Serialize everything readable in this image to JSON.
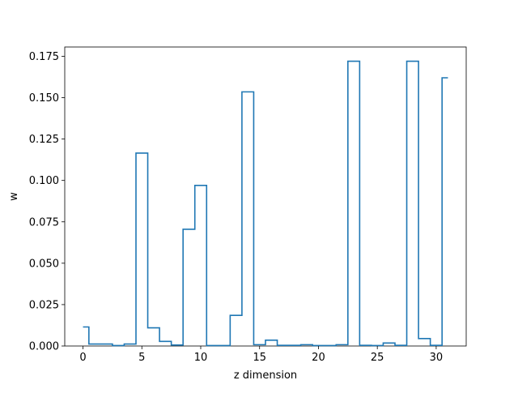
{
  "chart_data": {
    "type": "line",
    "style": "step-mid",
    "title": "",
    "xlabel": "z dimension",
    "ylabel": "w",
    "x": [
      0,
      1,
      2,
      3,
      4,
      5,
      6,
      7,
      8,
      9,
      10,
      11,
      12,
      13,
      14,
      15,
      16,
      17,
      18,
      19,
      20,
      21,
      22,
      23,
      24,
      25,
      26,
      27,
      28,
      29,
      30,
      31
    ],
    "series": [
      {
        "color": "#1f77b4",
        "values": [
          0.0115,
          0.0012,
          0.0012,
          0.0003,
          0.0012,
          0.1165,
          0.011,
          0.0028,
          0.0006,
          0.0705,
          0.097,
          0.0003,
          0.0003,
          0.0185,
          0.1535,
          0.0008,
          0.0035,
          0.0004,
          0.0004,
          0.0008,
          0.0003,
          0.0003,
          0.0008,
          0.172,
          0.0004,
          0.0003,
          0.0018,
          0.0004,
          0.172,
          0.0045,
          0.0004,
          0.162
        ]
      }
    ],
    "xlim": [
      -1.55,
      32.55
    ],
    "ylim": [
      0,
      0.1806
    ],
    "xticks": [
      0,
      5,
      10,
      15,
      20,
      25,
      30
    ],
    "xtick_labels": [
      "0",
      "5",
      "10",
      "15",
      "20",
      "25",
      "30"
    ],
    "yticks": [
      0,
      0.025,
      0.05,
      0.075,
      0.1,
      0.125,
      0.15,
      0.175
    ],
    "ytick_labels": [
      "0.000",
      "0.025",
      "0.050",
      "0.075",
      "0.100",
      "0.125",
      "0.150",
      "0.175"
    ],
    "grid": false,
    "legend": "none"
  }
}
